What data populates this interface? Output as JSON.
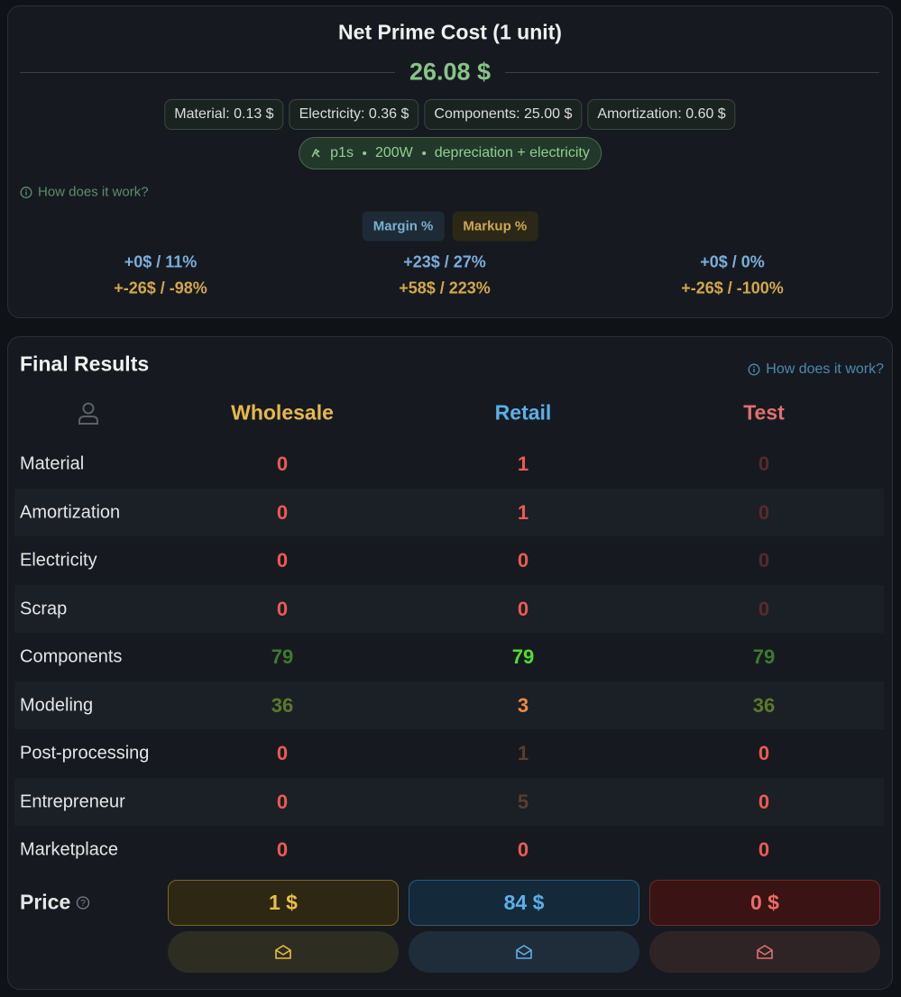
{
  "cost": {
    "title": "Net Prime Cost (1 unit)",
    "total": "26.08 $",
    "chips": [
      "Material: 0.13 $",
      "Electricity: 0.36 $",
      "Components: 25.00 $",
      "Amortization: 0.60 $"
    ],
    "printer": [
      "p1s",
      "200W",
      "depreciation + electricity"
    ],
    "help": "How does it work?",
    "tabs": [
      "Margin %",
      "Markup %"
    ],
    "columns": [
      {
        "margin": "+0$ / 11%",
        "markup": "+-26$ / -98%"
      },
      {
        "margin": "+23$ / 27%",
        "markup": "+58$ / 223%"
      },
      {
        "margin": "+0$ / 0%",
        "markup": "+-26$ / -100%"
      }
    ]
  },
  "results": {
    "title": "Final Results",
    "help": "How does it work?",
    "columns": [
      "Wholesale",
      "Retail",
      "Test"
    ],
    "rows": [
      {
        "label": "Material",
        "values": [
          0,
          1,
          0
        ]
      },
      {
        "label": "Amortization",
        "values": [
          0,
          1,
          0
        ]
      },
      {
        "label": "Electricity",
        "values": [
          0,
          0,
          0
        ]
      },
      {
        "label": "Scrap",
        "values": [
          0,
          0,
          0
        ]
      },
      {
        "label": "Components",
        "values": [
          79,
          79,
          79
        ]
      },
      {
        "label": "Modeling",
        "values": [
          36,
          3,
          36
        ]
      },
      {
        "label": "Post-processing",
        "values": [
          0,
          1,
          0
        ]
      },
      {
        "label": "Entrepreneur",
        "values": [
          0,
          5,
          0
        ]
      },
      {
        "label": "Marketplace",
        "values": [
          0,
          0,
          0
        ]
      }
    ],
    "price": {
      "label": "Price",
      "values": [
        "1 $",
        "84 $",
        "0 $"
      ]
    }
  }
}
